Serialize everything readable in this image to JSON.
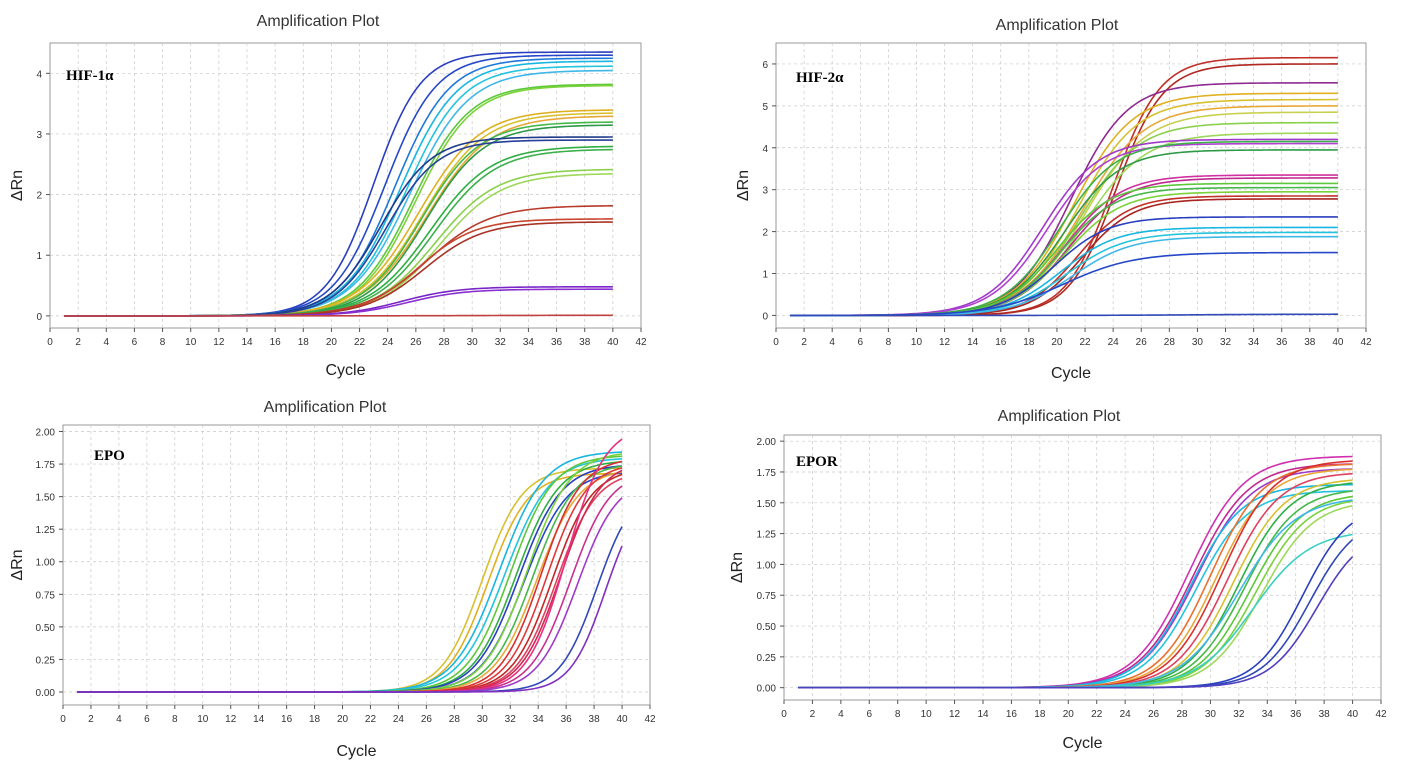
{
  "chart_data": [
    {
      "type": "line",
      "title": "Amplification Plot",
      "annotation": "HIF-1α",
      "xlabel": "Cycle",
      "ylabel": "ΔRn",
      "xlim": [
        0,
        42
      ],
      "ylim": [
        -0.2,
        4.5
      ],
      "xticks": [
        "0",
        "2",
        "4",
        "6",
        "8",
        "10",
        "12",
        "14",
        "16",
        "18",
        "20",
        "22",
        "24",
        "26",
        "28",
        "30",
        "32",
        "34",
        "36",
        "38",
        "40",
        "42"
      ],
      "yticks": [
        "0",
        "1",
        "2",
        "3",
        "4"
      ],
      "grid": true,
      "x": [
        1,
        40
      ],
      "series": [
        {
          "color": "#2a3fbf",
          "plateau": 4.35,
          "ct": 23.0,
          "k": 0.6
        },
        {
          "color": "#2648c8",
          "plateau": 4.3,
          "ct": 23.8,
          "k": 0.55
        },
        {
          "color": "#1e78d8",
          "plateau": 4.25,
          "ct": 24.5,
          "k": 0.52
        },
        {
          "color": "#18b6e0",
          "plateau": 4.2,
          "ct": 24.9,
          "k": 0.5
        },
        {
          "color": "#24c4dc",
          "plateau": 4.12,
          "ct": 25.3,
          "k": 0.5
        },
        {
          "color": "#3fb8e8",
          "plateau": 4.05,
          "ct": 25.6,
          "k": 0.48
        },
        {
          "color": "#5cc83a",
          "plateau": 3.82,
          "ct": 25.8,
          "k": 0.5
        },
        {
          "color": "#7bd23b",
          "plateau": 3.8,
          "ct": 26.0,
          "k": 0.5
        },
        {
          "color": "#e0b020",
          "plateau": 3.4,
          "ct": 26.2,
          "k": 0.46
        },
        {
          "color": "#d8c030",
          "plateau": 3.35,
          "ct": 26.5,
          "k": 0.46
        },
        {
          "color": "#e8a838",
          "plateau": 3.3,
          "ct": 26.8,
          "k": 0.45
        },
        {
          "color": "#46b84a",
          "plateau": 3.2,
          "ct": 26.4,
          "k": 0.48
        },
        {
          "color": "#2e9a48",
          "plateau": 3.15,
          "ct": 26.7,
          "k": 0.48
        },
        {
          "color": "#1f3a8a",
          "plateau": 2.95,
          "ct": 23.5,
          "k": 0.55
        },
        {
          "color": "#283f9a",
          "plateau": 2.9,
          "ct": 23.9,
          "k": 0.55
        },
        {
          "color": "#2fae44",
          "plateau": 2.8,
          "ct": 27.0,
          "k": 0.46
        },
        {
          "color": "#3cb04a",
          "plateau": 2.75,
          "ct": 27.3,
          "k": 0.46
        },
        {
          "color": "#8ad04a",
          "plateau": 2.42,
          "ct": 27.4,
          "k": 0.46
        },
        {
          "color": "#9ed85a",
          "plateau": 2.35,
          "ct": 27.7,
          "k": 0.46
        },
        {
          "color": "#b83a2a",
          "plateau": 1.82,
          "ct": 26.8,
          "k": 0.45
        },
        {
          "color": "#c8452e",
          "plateau": 1.6,
          "ct": 26.2,
          "k": 0.5
        },
        {
          "color": "#a83426",
          "plateau": 1.55,
          "ct": 26.6,
          "k": 0.48
        },
        {
          "color": "#7a24c8",
          "plateau": 0.48,
          "ct": 25.0,
          "k": 0.5
        },
        {
          "color": "#8a30d0",
          "plateau": 0.44,
          "ct": 25.4,
          "k": 0.5
        },
        {
          "color": "#c04040",
          "plateau": 0.01,
          "ct": 30.0,
          "k": 0.3
        }
      ]
    },
    {
      "type": "line",
      "title": "Amplification Plot",
      "annotation": "HIF-2α",
      "xlabel": "Cycle",
      "ylabel": "ΔRn",
      "xlim": [
        0,
        42
      ],
      "ylim": [
        -0.3,
        6.5
      ],
      "xticks": [
        "0",
        "2",
        "4",
        "6",
        "8",
        "10",
        "12",
        "14",
        "16",
        "18",
        "20",
        "22",
        "24",
        "26",
        "28",
        "30",
        "32",
        "34",
        "36",
        "38",
        "40",
        "42"
      ],
      "yticks": [
        "0",
        "1",
        "2",
        "3",
        "4",
        "5",
        "6"
      ],
      "grid": true,
      "x": [
        1,
        40
      ],
      "series": [
        {
          "color": "#c03028",
          "plateau": 6.15,
          "ct": 24.0,
          "k": 0.6
        },
        {
          "color": "#b02820",
          "plateau": 6.0,
          "ct": 24.2,
          "k": 0.6
        },
        {
          "color": "#8e2a90",
          "plateau": 5.55,
          "ct": 21.0,
          "k": 0.5
        },
        {
          "color": "#e0b020",
          "plateau": 5.3,
          "ct": 21.2,
          "k": 0.48
        },
        {
          "color": "#d8c030",
          "plateau": 5.15,
          "ct": 21.5,
          "k": 0.48
        },
        {
          "color": "#e8a838",
          "plateau": 5.0,
          "ct": 21.8,
          "k": 0.46
        },
        {
          "color": "#c8d050",
          "plateau": 4.85,
          "ct": 22.0,
          "k": 0.46
        },
        {
          "color": "#8ad04a",
          "plateau": 4.6,
          "ct": 21.6,
          "k": 0.48
        },
        {
          "color": "#9ed85a",
          "plateau": 4.35,
          "ct": 21.9,
          "k": 0.46
        },
        {
          "color": "#a03ac8",
          "plateau": 4.2,
          "ct": 19.0,
          "k": 0.5
        },
        {
          "color": "#b040d0",
          "plateau": 4.1,
          "ct": 19.3,
          "k": 0.5
        },
        {
          "color": "#3cb04a",
          "plateau": 4.15,
          "ct": 20.2,
          "k": 0.5
        },
        {
          "color": "#2e9a48",
          "plateau": 3.95,
          "ct": 20.5,
          "k": 0.5
        },
        {
          "color": "#d030a0",
          "plateau": 3.35,
          "ct": 20.6,
          "k": 0.5
        },
        {
          "color": "#c02890",
          "plateau": 3.28,
          "ct": 20.9,
          "k": 0.5
        },
        {
          "color": "#5cc83a",
          "plateau": 3.15,
          "ct": 20.0,
          "k": 0.52
        },
        {
          "color": "#46b84a",
          "plateau": 3.05,
          "ct": 20.3,
          "k": 0.52
        },
        {
          "color": "#7bd23b",
          "plateau": 2.95,
          "ct": 20.6,
          "k": 0.5
        },
        {
          "color": "#c03028",
          "plateau": 2.85,
          "ct": 21.5,
          "k": 0.55
        },
        {
          "color": "#a82420",
          "plateau": 2.78,
          "ct": 21.8,
          "k": 0.55
        },
        {
          "color": "#2a3fbf",
          "plateau": 2.35,
          "ct": 19.8,
          "k": 0.52
        },
        {
          "color": "#18b6e0",
          "plateau": 2.1,
          "ct": 20.3,
          "k": 0.5
        },
        {
          "color": "#24c4dc",
          "plateau": 1.98,
          "ct": 20.7,
          "k": 0.48
        },
        {
          "color": "#3fb8e8",
          "plateau": 1.88,
          "ct": 21.1,
          "k": 0.48
        },
        {
          "color": "#2648c8",
          "plateau": 1.5,
          "ct": 20.5,
          "k": 0.4
        },
        {
          "color": "#3048b8",
          "plateau": 0.03,
          "ct": 30.0,
          "k": 0.3
        }
      ]
    },
    {
      "type": "line",
      "title": "Amplification Plot",
      "annotation": "EPO",
      "xlabel": "Cycle",
      "ylabel": "ΔRn",
      "xlim": [
        0,
        42
      ],
      "ylim": [
        -0.1,
        2.05
      ],
      "xticks": [
        "0",
        "2",
        "4",
        "6",
        "8",
        "10",
        "12",
        "14",
        "16",
        "18",
        "20",
        "22",
        "24",
        "26",
        "28",
        "30",
        "32",
        "34",
        "36",
        "38",
        "40",
        "42"
      ],
      "yticks": [
        "0.00",
        "0.25",
        "0.50",
        "0.75",
        "1.00",
        "1.25",
        "1.50",
        "1.75",
        "2.00"
      ],
      "grid": true,
      "x": [
        1,
        40
      ],
      "series": [
        {
          "color": "#d8c030",
          "plateau": 1.72,
          "ct": 30.0,
          "k": 0.7
        },
        {
          "color": "#e0b020",
          "plateau": 1.68,
          "ct": 30.4,
          "k": 0.7
        },
        {
          "color": "#18b6e0",
          "plateau": 1.85,
          "ct": 31.2,
          "k": 0.62
        },
        {
          "color": "#24c4dc",
          "plateau": 1.8,
          "ct": 31.6,
          "k": 0.62
        },
        {
          "color": "#5cc83a",
          "plateau": 1.82,
          "ct": 32.0,
          "k": 0.65
        },
        {
          "color": "#2fae44",
          "plateau": 1.78,
          "ct": 32.4,
          "k": 0.65
        },
        {
          "color": "#2a3fbf",
          "plateau": 1.75,
          "ct": 32.6,
          "k": 0.65
        },
        {
          "color": "#2648c8",
          "plateau": 1.7,
          "ct": 33.0,
          "k": 0.65
        },
        {
          "color": "#7bd23b",
          "plateau": 1.85,
          "ct": 33.2,
          "k": 0.65
        },
        {
          "color": "#46b84a",
          "plateau": 1.76,
          "ct": 33.6,
          "k": 0.66
        },
        {
          "color": "#e8a838",
          "plateau": 1.72,
          "ct": 33.9,
          "k": 0.66
        },
        {
          "color": "#d83030",
          "plateau": 1.8,
          "ct": 34.2,
          "k": 0.7
        },
        {
          "color": "#e03838",
          "plateau": 1.76,
          "ct": 34.6,
          "k": 0.7
        },
        {
          "color": "#c02828",
          "plateau": 1.72,
          "ct": 35.0,
          "k": 0.7
        },
        {
          "color": "#e04060",
          "plateau": 1.7,
          "ct": 35.3,
          "k": 0.7
        },
        {
          "color": "#d02850",
          "plateau": 1.78,
          "ct": 35.6,
          "k": 0.7
        },
        {
          "color": "#e83080",
          "plateau": 2.05,
          "ct": 36.0,
          "k": 0.72
        },
        {
          "color": "#c83090",
          "plateau": 1.7,
          "ct": 36.3,
          "k": 0.7
        },
        {
          "color": "#a03ac8",
          "plateau": 1.65,
          "ct": 36.8,
          "k": 0.7
        },
        {
          "color": "#3048b8",
          "plateau": 1.6,
          "ct": 38.2,
          "k": 0.75
        },
        {
          "color": "#8030c0",
          "plateau": 1.55,
          "ct": 38.8,
          "k": 0.8
        }
      ]
    },
    {
      "type": "line",
      "title": "Amplification Plot",
      "annotation": "EPOR",
      "xlabel": "Cycle",
      "ylabel": "ΔRn",
      "xlim": [
        0,
        42
      ],
      "ylim": [
        -0.1,
        2.05
      ],
      "xticks": [
        "0",
        "2",
        "4",
        "6",
        "8",
        "10",
        "12",
        "14",
        "16",
        "18",
        "20",
        "22",
        "24",
        "26",
        "28",
        "30",
        "32",
        "34",
        "36",
        "38",
        "40",
        "42"
      ],
      "yticks": [
        "0.00",
        "0.25",
        "0.50",
        "0.75",
        "1.00",
        "1.25",
        "1.50",
        "1.75",
        "2.00"
      ],
      "grid": true,
      "x": [
        1,
        40
      ],
      "series": [
        {
          "color": "#d030b0",
          "plateau": 1.88,
          "ct": 28.5,
          "k": 0.52
        },
        {
          "color": "#c02890",
          "plateau": 1.82,
          "ct": 28.8,
          "k": 0.52
        },
        {
          "color": "#a03ac8",
          "plateau": 1.78,
          "ct": 29.0,
          "k": 0.52
        },
        {
          "color": "#18b6e0",
          "plateau": 1.65,
          "ct": 28.6,
          "k": 0.55
        },
        {
          "color": "#24c4dc",
          "plateau": 1.6,
          "ct": 29.0,
          "k": 0.55
        },
        {
          "color": "#e87030",
          "plateau": 1.82,
          "ct": 30.0,
          "k": 0.55
        },
        {
          "color": "#e8a838",
          "plateau": 1.78,
          "ct": 30.4,
          "k": 0.55
        },
        {
          "color": "#d83030",
          "plateau": 1.85,
          "ct": 30.8,
          "k": 0.55
        },
        {
          "color": "#e04060",
          "plateau": 1.75,
          "ct": 31.2,
          "k": 0.55
        },
        {
          "color": "#d8c030",
          "plateau": 1.7,
          "ct": 31.6,
          "k": 0.55
        },
        {
          "color": "#2fae44",
          "plateau": 1.68,
          "ct": 32.0,
          "k": 0.55
        },
        {
          "color": "#46b84a",
          "plateau": 1.62,
          "ct": 32.4,
          "k": 0.55
        },
        {
          "color": "#5cc83a",
          "plateau": 1.58,
          "ct": 32.8,
          "k": 0.55
        },
        {
          "color": "#7bd23b",
          "plateau": 1.55,
          "ct": 33.2,
          "k": 0.55
        },
        {
          "color": "#9ed85a",
          "plateau": 1.52,
          "ct": 33.6,
          "k": 0.55
        },
        {
          "color": "#3fb8e8",
          "plateau": 1.55,
          "ct": 32.0,
          "k": 0.5
        },
        {
          "color": "#3ad0c0",
          "plateau": 1.28,
          "ct": 33.0,
          "k": 0.5
        },
        {
          "color": "#2a3fbf",
          "plateau": 1.5,
          "ct": 36.5,
          "k": 0.6
        },
        {
          "color": "#3048b8",
          "plateau": 1.4,
          "ct": 37.0,
          "k": 0.6
        },
        {
          "color": "#5040c0",
          "plateau": 1.3,
          "ct": 37.5,
          "k": 0.6
        }
      ]
    }
  ]
}
